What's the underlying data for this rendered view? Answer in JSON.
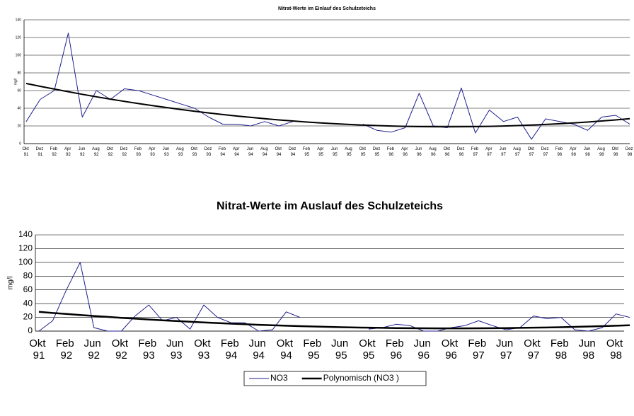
{
  "chart_data": [
    {
      "type": "line",
      "title": "Nitrat-Werte im Einlauf des Schulzeteichs",
      "y_label": "mg/l",
      "categories": [
        "Okt 91",
        "Dez 91",
        "Feb 92",
        "Apr 92",
        "Jun 92",
        "Aug 92",
        "Okt 92",
        "Dez 92",
        "Feb 93",
        "Apr 93",
        "Jun 93",
        "Aug 93",
        "Okt 93",
        "Dez 93",
        "Feb 94",
        "Apr 94",
        "Jun 94",
        "Aug 94",
        "Okt 94",
        "Dez 94",
        "Feb 95",
        "Apr 95",
        "Jun 95",
        "Aug 95",
        "Okt 95",
        "Dez 95",
        "Feb 96",
        "Apr 96",
        "Jun 96",
        "Aug 96",
        "Okt 96",
        "Dez 96",
        "Feb 97",
        "Apr 97",
        "Jun 97",
        "Aug 97",
        "Okt 97",
        "Dez 97",
        "Feb 98",
        "Apr 98",
        "Jun 98",
        "Aug 98",
        "Okt 98",
        "Dez 98"
      ],
      "ylim": [
        0,
        140
      ],
      "yticks": [
        0,
        20,
        40,
        60,
        80,
        100,
        120,
        140
      ],
      "grid": true,
      "series": [
        {
          "color": "#1f1f8f",
          "values": [
            25,
            50,
            60,
            125,
            30,
            60,
            50,
            62,
            60,
            55,
            50,
            45,
            40,
            30,
            22,
            22,
            20,
            25,
            20,
            25,
            null,
            null,
            null,
            null,
            22,
            15,
            13,
            18,
            57,
            20,
            18,
            63,
            12,
            38,
            25,
            30,
            5,
            28,
            25,
            22,
            15,
            30,
            32,
            22
          ]
        },
        {
          "color": "#000000",
          "values": [
            68,
            64.8,
            61.7,
            58.7,
            55.8,
            53,
            50.3,
            47.8,
            45.3,
            43,
            40.8,
            38.6,
            36.6,
            34.7,
            32.9,
            31.2,
            29.7,
            28.2,
            26.8,
            25.6,
            24.4,
            23.4,
            22.5,
            21.7,
            21,
            20.4,
            19.9,
            19.5,
            19.2,
            19.1,
            19,
            19.1,
            19.2,
            19.5,
            19.9,
            20.4,
            21,
            21.7,
            22.5,
            23.4,
            24.4,
            25.6,
            26.8,
            28.2
          ]
        }
      ]
    },
    {
      "type": "line",
      "title": "Nitrat-Werte im Auslauf des Schulzeteichs",
      "y_label": "mg/l",
      "categories": [
        "Okt 91",
        null,
        "Feb 92",
        null,
        "Jun 92",
        null,
        "Okt 92",
        null,
        "Feb 93",
        null,
        "Jun 93",
        null,
        "Okt 93",
        null,
        "Feb 94",
        null,
        "Jun 94",
        null,
        "Okt 94",
        null,
        "Feb 95",
        null,
        "Jun 95",
        null,
        "Okt 95",
        null,
        "Feb 96",
        null,
        "Jun 96",
        null,
        "Okt 96",
        null,
        "Feb 97",
        null,
        "Jun 97",
        null,
        "Okt 97",
        null,
        "Feb 98",
        null,
        "Jun 98",
        null,
        "Okt 98",
        null
      ],
      "ylim": [
        0,
        140
      ],
      "yticks": [
        0,
        20,
        40,
        60,
        80,
        100,
        120,
        140
      ],
      "grid": true,
      "series": [
        {
          "name": "NO3",
          "color": "#1f1f8f",
          "values": [
            0,
            15,
            60,
            100,
            5,
            0,
            0,
            22,
            38,
            15,
            20,
            3,
            38,
            20,
            12,
            12,
            0,
            2,
            28,
            20,
            null,
            null,
            null,
            null,
            3,
            5,
            10,
            8,
            0,
            0,
            5,
            8,
            15,
            8,
            2,
            5,
            22,
            18,
            20,
            2,
            0,
            5,
            25,
            20
          ]
        },
        {
          "name": "Polynomisch (NO3 )",
          "color": "#000000",
          "values": [
            28,
            26.4,
            24.9,
            23.4,
            22,
            20.7,
            19.4,
            18.1,
            16.9,
            15.8,
            14.7,
            13.6,
            12.6,
            11.7,
            10.8,
            10,
            9.2,
            8.5,
            7.8,
            7.2,
            6.7,
            6.2,
            5.7,
            5.3,
            5,
            4.7,
            4.4,
            4.2,
            4.1,
            4,
            4,
            4,
            4.1,
            4.2,
            4.4,
            4.7,
            5,
            5.3,
            5.7,
            6.2,
            6.7,
            7.2,
            7.8,
            8.5
          ]
        }
      ]
    }
  ]
}
